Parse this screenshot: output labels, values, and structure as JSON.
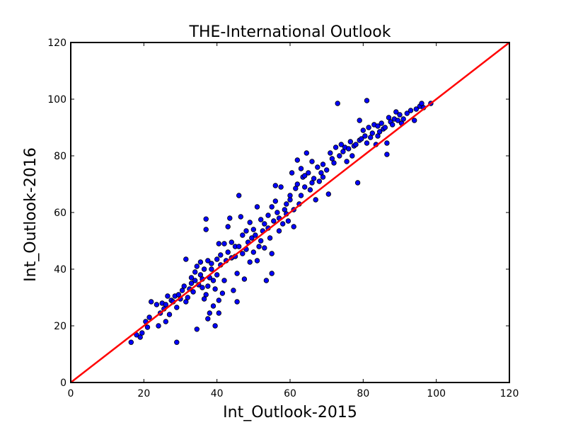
{
  "chart_data": {
    "type": "scatter",
    "title": "THE-International Outlook",
    "xlabel": "Int_Outlook-2015",
    "ylabel": "Int_Outlook-2016",
    "xlim": [
      0,
      120
    ],
    "ylim": [
      0,
      120
    ],
    "xticks": [
      "0",
      "20",
      "40",
      "60",
      "80",
      "100",
      "120"
    ],
    "yticks": [
      "0",
      "20",
      "40",
      "60",
      "80",
      "100",
      "120"
    ],
    "grid": false,
    "legend": "none",
    "point_color": "#0000ff",
    "point_edge_color": "#000000",
    "line_color": "#ff0000",
    "reference_line": {
      "from": [
        0,
        0
      ],
      "to": [
        120,
        120
      ]
    },
    "points": [
      [
        16.5,
        14.2
      ],
      [
        18.0,
        16.8
      ],
      [
        19.0,
        16.0
      ],
      [
        19.5,
        17.5
      ],
      [
        20.5,
        21.5
      ],
      [
        21.0,
        19.5
      ],
      [
        21.5,
        23.0
      ],
      [
        22.0,
        28.5
      ],
      [
        23.5,
        27.5
      ],
      [
        24.0,
        20.0
      ],
      [
        24.5,
        24.5
      ],
      [
        25.0,
        28.0
      ],
      [
        25.5,
        26.0
      ],
      [
        26.0,
        21.5
      ],
      [
        26.0,
        27.5
      ],
      [
        26.5,
        30.5
      ],
      [
        27.0,
        24.0
      ],
      [
        27.5,
        29.0
      ],
      [
        28.0,
        28.5
      ],
      [
        28.5,
        30.5
      ],
      [
        29.0,
        14.2
      ],
      [
        29.0,
        26.5
      ],
      [
        29.5,
        31.0
      ],
      [
        30.0,
        29.5
      ],
      [
        30.5,
        32.5
      ],
      [
        31.0,
        34.0
      ],
      [
        31.5,
        28.5
      ],
      [
        31.5,
        43.5
      ],
      [
        32.0,
        30.0
      ],
      [
        32.5,
        33.0
      ],
      [
        33.0,
        37.0
      ],
      [
        33.0,
        35.0
      ],
      [
        33.5,
        32.0
      ],
      [
        34.0,
        39.0
      ],
      [
        34.0,
        36.0
      ],
      [
        34.5,
        18.8
      ],
      [
        34.5,
        41.0
      ],
      [
        35.0,
        34.5
      ],
      [
        35.5,
        38.0
      ],
      [
        35.5,
        42.5
      ],
      [
        36.0,
        36.5
      ],
      [
        36.0,
        33.5
      ],
      [
        36.5,
        29.5
      ],
      [
        36.5,
        40.0
      ],
      [
        37.0,
        54.0
      ],
      [
        37.0,
        57.7
      ],
      [
        37.0,
        31.0
      ],
      [
        37.5,
        22.5
      ],
      [
        37.5,
        43.0
      ],
      [
        37.5,
        34.0
      ],
      [
        38.0,
        24.5
      ],
      [
        38.0,
        37.0
      ],
      [
        38.5,
        40.0
      ],
      [
        38.5,
        42.0
      ],
      [
        39.0,
        27.0
      ],
      [
        39.0,
        36.0
      ],
      [
        39.5,
        20.0
      ],
      [
        39.5,
        33.0
      ],
      [
        40.0,
        38.0
      ],
      [
        40.0,
        43.5
      ],
      [
        40.5,
        24.5
      ],
      [
        40.5,
        29.0
      ],
      [
        40.5,
        49.0
      ],
      [
        41.0,
        41.5
      ],
      [
        41.0,
        45.0
      ],
      [
        41.5,
        31.5
      ],
      [
        42.0,
        36.0
      ],
      [
        42.0,
        49.0
      ],
      [
        42.5,
        43.0
      ],
      [
        43.0,
        55.0
      ],
      [
        43.0,
        46.0
      ],
      [
        43.5,
        58.0
      ],
      [
        44.0,
        44.0
      ],
      [
        44.0,
        49.5
      ],
      [
        44.5,
        32.5
      ],
      [
        45.0,
        48.0
      ],
      [
        45.0,
        44.5
      ],
      [
        45.5,
        38.5
      ],
      [
        45.5,
        28.5
      ],
      [
        46.0,
        66.0
      ],
      [
        46.0,
        48.0
      ],
      [
        46.5,
        58.5
      ],
      [
        47.0,
        52.0
      ],
      [
        47.0,
        45.5
      ],
      [
        47.5,
        36.5
      ],
      [
        48.0,
        53.5
      ],
      [
        48.0,
        47.0
      ],
      [
        48.5,
        49.5
      ],
      [
        49.0,
        56.5
      ],
      [
        49.0,
        42.5
      ],
      [
        49.5,
        51.0
      ],
      [
        50.0,
        54.0
      ],
      [
        50.0,
        46.0
      ],
      [
        50.5,
        52.0
      ],
      [
        51.0,
        62.0
      ],
      [
        51.0,
        43.0
      ],
      [
        51.5,
        48.0
      ],
      [
        52.0,
        57.5
      ],
      [
        52.0,
        50.0
      ],
      [
        52.5,
        53.5
      ],
      [
        53.0,
        56.0
      ],
      [
        53.0,
        47.5
      ],
      [
        53.5,
        36.0
      ],
      [
        54.0,
        59.0
      ],
      [
        54.0,
        54.5
      ],
      [
        54.5,
        51.0
      ],
      [
        55.0,
        38.5
      ],
      [
        55.0,
        45.5
      ],
      [
        55.0,
        62.0
      ],
      [
        55.5,
        57.0
      ],
      [
        56.0,
        64.0
      ],
      [
        56.0,
        69.5
      ],
      [
        56.5,
        60.0
      ],
      [
        57.0,
        58.0
      ],
      [
        57.0,
        53.5
      ],
      [
        57.5,
        69.0
      ],
      [
        58.0,
        56.0
      ],
      [
        58.5,
        61.0
      ],
      [
        59.0,
        63.0
      ],
      [
        59.0,
        59.5
      ],
      [
        59.5,
        57.0
      ],
      [
        60.0,
        64.5
      ],
      [
        60.0,
        66.0
      ],
      [
        60.5,
        74.0
      ],
      [
        61.0,
        61.0
      ],
      [
        61.0,
        55.0
      ],
      [
        61.5,
        68.5
      ],
      [
        62.0,
        70.0
      ],
      [
        62.0,
        78.5
      ],
      [
        62.5,
        63.0
      ],
      [
        63.0,
        66.0
      ],
      [
        63.0,
        75.5
      ],
      [
        63.5,
        72.5
      ],
      [
        64.0,
        73.0
      ],
      [
        64.0,
        69.0
      ],
      [
        64.5,
        81.0
      ],
      [
        65.0,
        74.0
      ],
      [
        65.5,
        68.0
      ],
      [
        66.0,
        70.5
      ],
      [
        66.0,
        78.0
      ],
      [
        66.5,
        72.0
      ],
      [
        67.0,
        64.5
      ],
      [
        67.5,
        76.0
      ],
      [
        68.0,
        71.0
      ],
      [
        68.5,
        74.0
      ],
      [
        69.0,
        77.0
      ],
      [
        69.0,
        72.5
      ],
      [
        70.0,
        75.0
      ],
      [
        70.5,
        66.5
      ],
      [
        71.0,
        81.0
      ],
      [
        71.5,
        79.0
      ],
      [
        72.0,
        77.5
      ],
      [
        72.5,
        83.0
      ],
      [
        73.0,
        98.5
      ],
      [
        73.5,
        80.0
      ],
      [
        74.0,
        84.0
      ],
      [
        74.5,
        81.5
      ],
      [
        75.0,
        83.0
      ],
      [
        75.5,
        78.0
      ],
      [
        76.0,
        82.5
      ],
      [
        76.5,
        85.0
      ],
      [
        77.0,
        80.0
      ],
      [
        77.5,
        83.5
      ],
      [
        78.0,
        84.0
      ],
      [
        78.5,
        70.5
      ],
      [
        79.0,
        92.5
      ],
      [
        79.0,
        85.5
      ],
      [
        79.5,
        86.0
      ],
      [
        80.0,
        89.0
      ],
      [
        80.5,
        87.0
      ],
      [
        81.0,
        84.5
      ],
      [
        81.0,
        99.5
      ],
      [
        81.5,
        90.0
      ],
      [
        82.0,
        86.5
      ],
      [
        82.5,
        88.0
      ],
      [
        83.0,
        91.0
      ],
      [
        83.5,
        84.0
      ],
      [
        84.0,
        90.5
      ],
      [
        84.0,
        87.0
      ],
      [
        84.5,
        88.5
      ],
      [
        85.0,
        91.5
      ],
      [
        85.5,
        89.5
      ],
      [
        86.0,
        90.0
      ],
      [
        86.5,
        80.5
      ],
      [
        86.5,
        84.5
      ],
      [
        87.0,
        93.5
      ],
      [
        87.5,
        92.0
      ],
      [
        88.0,
        91.0
      ],
      [
        88.5,
        93.0
      ],
      [
        89.0,
        95.5
      ],
      [
        89.5,
        92.5
      ],
      [
        90.0,
        94.5
      ],
      [
        90.5,
        91.5
      ],
      [
        91.0,
        93.0
      ],
      [
        92.0,
        95.0
      ],
      [
        93.0,
        96.0
      ],
      [
        94.0,
        92.5
      ],
      [
        94.5,
        96.5
      ],
      [
        95.5,
        97.5
      ],
      [
        96.0,
        98.5
      ],
      [
        96.5,
        97.0
      ],
      [
        98.5,
        98.5
      ]
    ]
  }
}
